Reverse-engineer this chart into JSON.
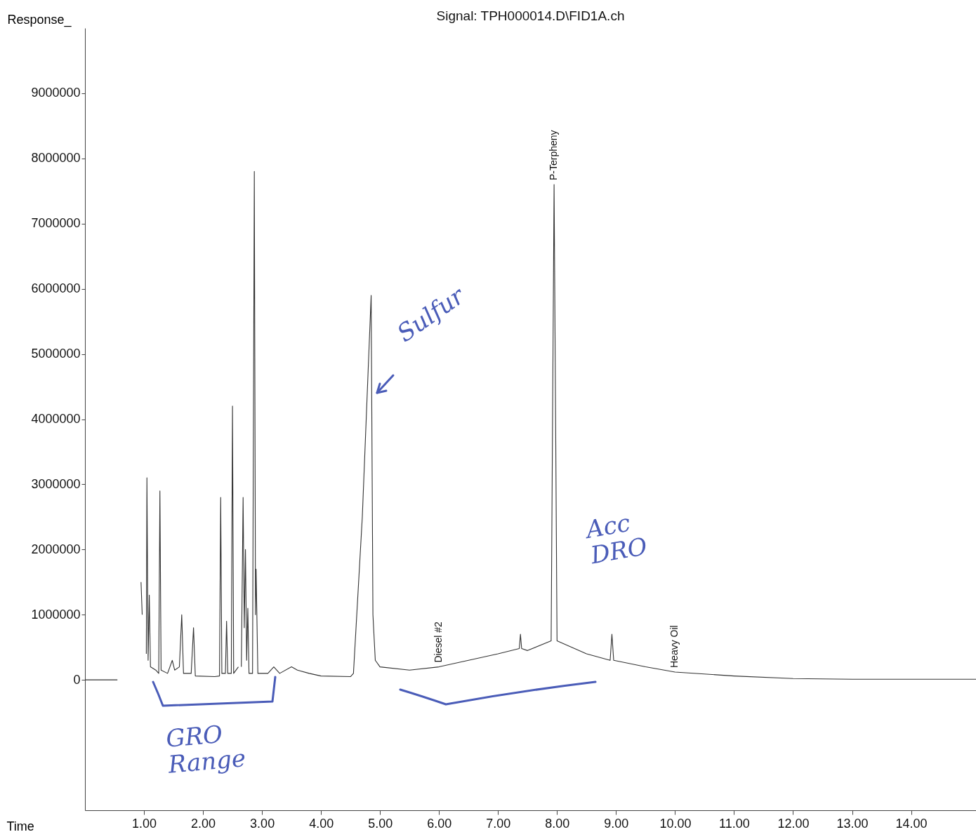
{
  "chart_data": {
    "type": "line",
    "title": "Signal: TPH000014.D\\FID1A.ch",
    "xlabel": "Time",
    "ylabel": "Response_",
    "x": [
      0,
      0.55,
      0.57,
      0.93,
      0.95,
      0.97,
      0.99,
      1.02,
      1.04,
      1.05,
      1.07,
      1.09,
      1.11,
      1.2,
      1.25,
      1.27,
      1.29,
      1.4,
      1.48,
      1.52,
      1.6,
      1.64,
      1.67,
      1.8,
      1.84,
      1.87,
      2.2,
      2.28,
      2.3,
      2.32,
      2.38,
      2.4,
      2.42,
      2.48,
      2.5,
      2.52,
      2.6,
      2.62,
      2.65,
      2.68,
      2.7,
      2.72,
      2.74,
      2.76,
      2.78,
      2.84,
      2.87,
      2.89,
      2.9,
      2.93,
      3.1,
      3.2,
      3.3,
      3.5,
      3.6,
      3.8,
      4,
      4.5,
      4.55,
      4.7,
      4.85,
      4.88,
      4.92,
      5,
      5.5,
      6,
      6.5,
      7,
      7.36,
      7.38,
      7.4,
      7.5,
      7.9,
      7.95,
      8,
      8.5,
      8.9,
      8.93,
      8.96,
      9.5,
      10,
      11,
      12,
      13,
      15.1
    ],
    "values": [
      0,
      0,
      null,
      null,
      1500000,
      1000000,
      null,
      null,
      400000,
      3100000,
      300000,
      1300000,
      200000,
      150000,
      100000,
      2900000,
      150000,
      100000,
      300000,
      150000,
      200000,
      1000000,
      100000,
      100000,
      800000,
      60000,
      50000,
      60000,
      2800000,
      100000,
      100000,
      900000,
      100000,
      100000,
      4200000,
      100000,
      200000,
      null,
      200000,
      2800000,
      800000,
      2000000,
      300000,
      1100000,
      100000,
      100000,
      7800000,
      1000000,
      1700000,
      100000,
      100000,
      200000,
      100000,
      200000,
      150000,
      100000,
      60000,
      50000,
      100000,
      2500000,
      5900000,
      1000000,
      300000,
      200000,
      150000,
      200000,
      300000,
      400000,
      480000,
      700000,
      480000,
      450000,
      600000,
      7600000,
      600000,
      400000,
      300000,
      700000,
      300000,
      200000,
      120000,
      60000,
      20000,
      10000,
      10000
    ],
    "color": "#333333",
    "xlim": [
      0,
      15.1
    ],
    "ylim": [
      -2000000,
      10000000
    ],
    "xticks": [
      {
        "value": 1,
        "label": "1.00"
      },
      {
        "value": 2,
        "label": "2.00"
      },
      {
        "value": 3,
        "label": "3.00"
      },
      {
        "value": 4,
        "label": "4.00"
      },
      {
        "value": 5,
        "label": "5.00"
      },
      {
        "value": 6,
        "label": "6.00"
      },
      {
        "value": 7,
        "label": "7.00"
      },
      {
        "value": 8,
        "label": "8.00"
      },
      {
        "value": 9,
        "label": "9.00"
      },
      {
        "value": 10,
        "label": "10.00"
      },
      {
        "value": 11,
        "label": "11.00"
      },
      {
        "value": 12,
        "label": "12.00"
      },
      {
        "value": 13,
        "label": "13.00"
      },
      {
        "value": 14,
        "label": "14.00"
      }
    ],
    "yticks": [
      0,
      1000000,
      2000000,
      3000000,
      4000000,
      5000000,
      6000000,
      7000000,
      8000000,
      9000000
    ],
    "annotations": [
      {
        "text": "Diesel #2",
        "x": 6.0,
        "y": 200000
      },
      {
        "text": "P-Terpheny",
        "x": 7.95,
        "y": 7600000
      },
      {
        "text": "Heavy Oil",
        "x": 10.0,
        "y": 120000
      },
      "Sulfur",
      "Acc DRO",
      "GRO Range"
    ]
  }
}
